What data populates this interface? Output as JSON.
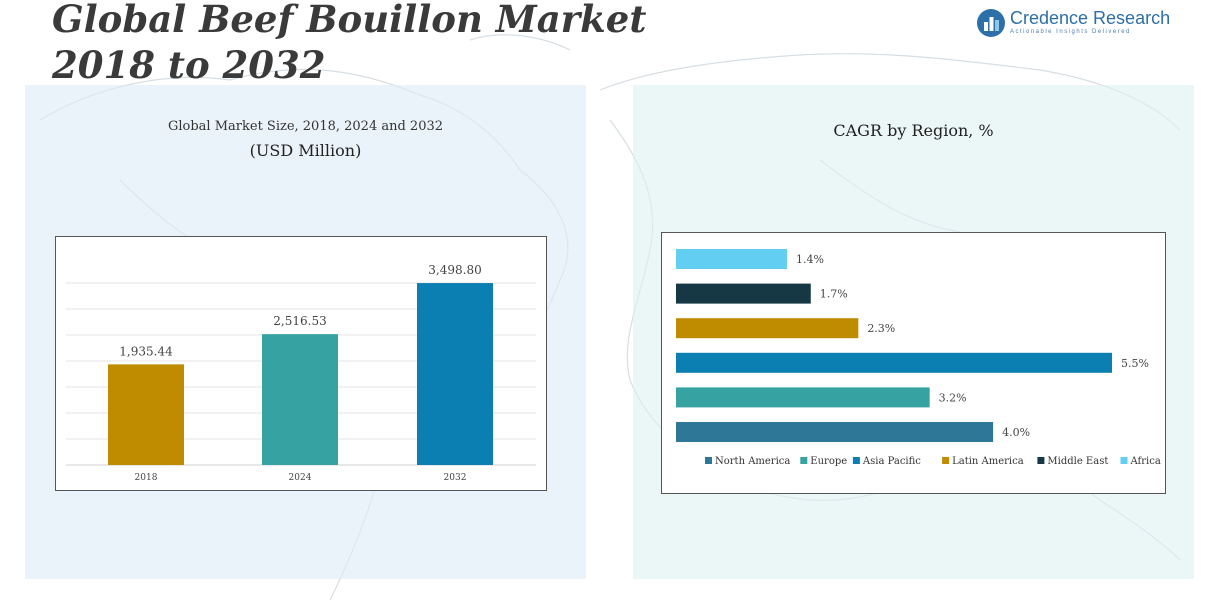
{
  "page": {
    "title_line1": "Global Beef Bouillon Market",
    "title_line2": "2018 to 2032"
  },
  "logo": {
    "name": "Credence Research",
    "tagline": "Actionable Insights Delivered"
  },
  "chart_data": [
    {
      "type": "bar",
      "title": "Global Market Size, 2018, 2024 and 2032",
      "subtitle": "(USD Million)",
      "categories": [
        "2018",
        "2024",
        "2032"
      ],
      "values": [
        1935.44,
        2516.53,
        3498.8
      ],
      "value_labels": [
        "1,935.44",
        "2,516.53",
        "3,498.80"
      ],
      "colors": [
        "#bf8c00",
        "#36a3a2",
        "#0b7fb1"
      ],
      "ylim": [
        0,
        4000
      ],
      "grid": true
    },
    {
      "type": "bar",
      "orientation": "horizontal",
      "title": "CAGR by Region, %",
      "series": [
        {
          "name": "North America",
          "value": 4.0,
          "label": "4.0%",
          "color": "#2f7796"
        },
        {
          "name": "Europe",
          "value": 3.2,
          "label": "3.2%",
          "color": "#36a3a2"
        },
        {
          "name": "Asia Pacific",
          "value": 5.5,
          "label": "5.5%",
          "color": "#0b7fb1"
        },
        {
          "name": "Latin America",
          "value": 2.3,
          "label": "2.3%",
          "color": "#bf8c00"
        },
        {
          "name": "Middle East",
          "value": 1.7,
          "label": "1.7%",
          "color": "#163744"
        },
        {
          "name": "Africa",
          "value": 1.4,
          "label": "1.4%",
          "color": "#62cff2"
        }
      ],
      "xlim": [
        0,
        5.5
      ],
      "legend_position": "bottom"
    }
  ]
}
